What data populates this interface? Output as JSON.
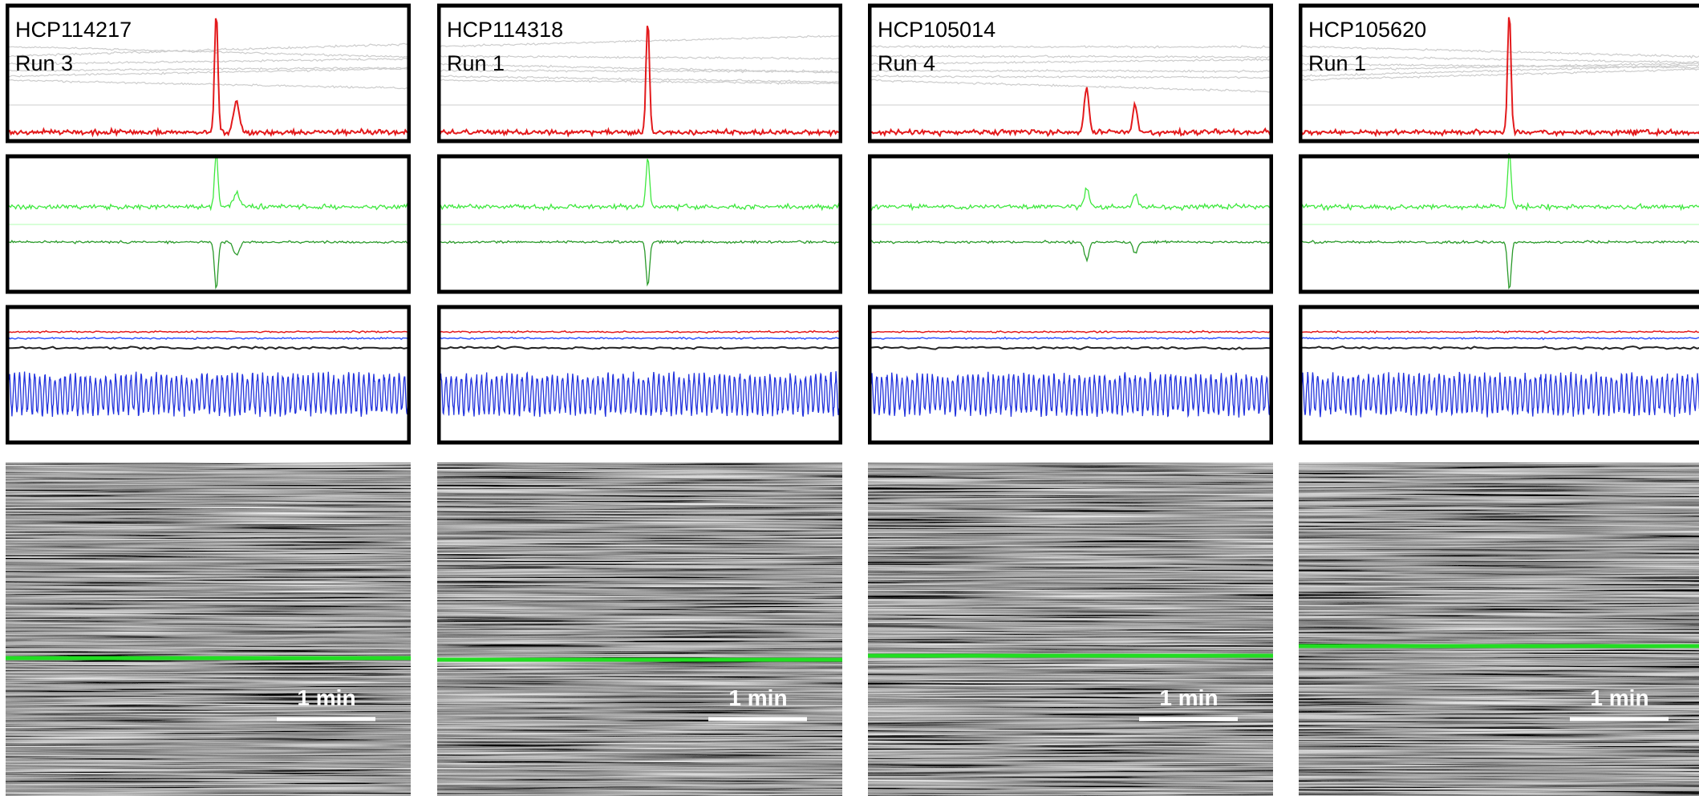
{
  "panels": [
    {
      "subject": "HCP114217",
      "run": "Run 3",
      "scale_bar": "1 min"
    },
    {
      "subject": "HCP114318",
      "run": "Run 1",
      "scale_bar": "1 min"
    },
    {
      "subject": "HCP105014",
      "run": "Run 4",
      "scale_bar": "1 min"
    },
    {
      "subject": "HCP105620",
      "run": "Run 1",
      "scale_bar": "1 min"
    }
  ]
}
